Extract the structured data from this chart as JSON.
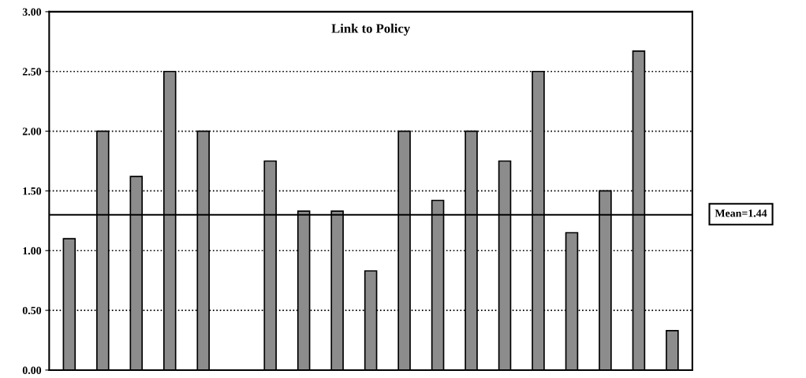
{
  "chart_data": {
    "type": "bar",
    "title": "Link to Policy",
    "categories": [
      null,
      null,
      null,
      null,
      null,
      null,
      null,
      null,
      null,
      null,
      null,
      null,
      null,
      null,
      null,
      null,
      null,
      null,
      null
    ],
    "values": [
      1.1,
      2.0,
      1.62,
      2.5,
      2.0,
      null,
      1.75,
      1.33,
      1.33,
      0.83,
      2.0,
      1.42,
      2.0,
      1.75,
      2.5,
      1.15,
      1.5,
      2.67,
      0.33
    ],
    "color": "#8c8c8c",
    "ylim": [
      0,
      3
    ],
    "yticks": [
      {
        "value": 0,
        "label": "0.00"
      },
      {
        "value": 0.5,
        "label": "0.50"
      },
      {
        "value": 1,
        "label": "1.00"
      },
      {
        "value": 1.5,
        "label": "1.50"
      },
      {
        "value": 2,
        "label": "2.00"
      },
      {
        "value": 2.5,
        "label": "2.50"
      },
      {
        "value": 3,
        "label": "3.00"
      }
    ],
    "grid": "y",
    "ref_lines": [
      {
        "axis": "y",
        "value": 1.3,
        "color": "#000000",
        "line_style": "solid"
      }
    ],
    "annotations": [
      "Mean=1.44"
    ]
  }
}
